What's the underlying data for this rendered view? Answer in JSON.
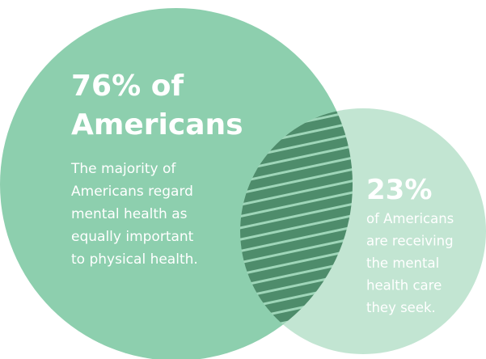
{
  "circles": [
    {
      "headline": [
        "76% of",
        "Americans"
      ],
      "body": [
        "The majority of",
        "Americans regard",
        "mental health as",
        "equally important",
        "to physical health."
      ]
    },
    {
      "headline": [
        "23%"
      ],
      "body": [
        "of Americans",
        "are receiving",
        "the mental",
        "health care",
        "they seek."
      ]
    }
  ]
}
